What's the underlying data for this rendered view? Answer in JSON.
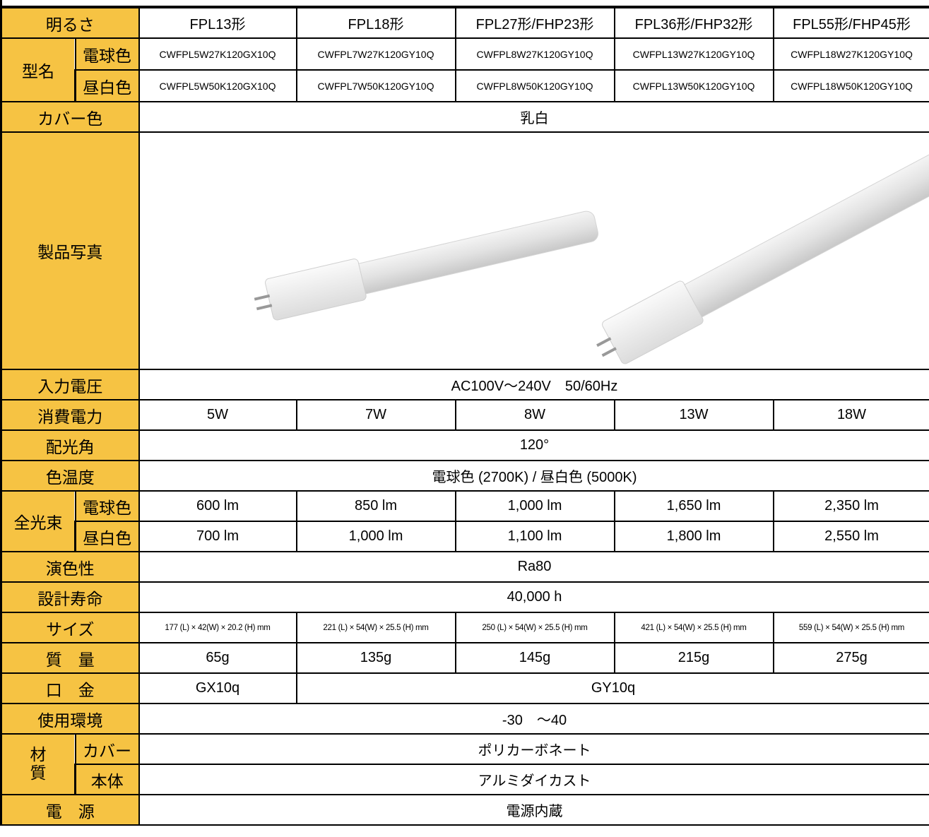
{
  "table": {
    "brightness": {
      "label": "明るさ",
      "values": [
        "FPL13形",
        "FPL18形",
        "FPL27形/FHP23形",
        "FPL36形/FHP32形",
        "FPL55形/FHP45形"
      ]
    },
    "model": {
      "label": "型名",
      "warm": {
        "label": "電球色",
        "values": [
          "CWFPL5W27K120GX10Q",
          "CWFPL7W27K120GY10Q",
          "CWFPL8W27K120GY10Q",
          "CWFPL13W27K120GY10Q",
          "CWFPL18W27K120GY10Q"
        ]
      },
      "neutral": {
        "label": "昼白色",
        "values": [
          "CWFPL5W50K120GX10Q",
          "CWFPL7W50K120GY10Q",
          "CWFPL8W50K120GY10Q",
          "CWFPL13W50K120GY10Q",
          "CWFPL18W50K120GY10Q"
        ]
      }
    },
    "cover_color": {
      "label": "カバー色",
      "value": "乳白"
    },
    "photo": {
      "label": "製品写真"
    },
    "input_voltage": {
      "label": "入力電圧",
      "value": "AC100V～240V　50/60Hz"
    },
    "power": {
      "label": "消費電力",
      "values": [
        "5W",
        "7W",
        "8W",
        "13W",
        "18W"
      ]
    },
    "beam_angle": {
      "label": "配光角",
      "value": "120°"
    },
    "color_temp": {
      "label": "色温度",
      "value": "電球色 (2700K) / 昼白色 (5000K)"
    },
    "luminous_flux": {
      "label": "全光束",
      "warm": {
        "label": "電球色",
        "values": [
          "600 lm",
          "850 lm",
          "1,000 lm",
          "1,650 lm",
          "2,350 lm"
        ]
      },
      "neutral": {
        "label": "昼白色",
        "values": [
          "700 lm",
          "1,000 lm",
          "1,100 lm",
          "1,800 lm",
          "2,550 lm"
        ]
      }
    },
    "cri": {
      "label": "演色性",
      "value": "Ra80"
    },
    "lifetime": {
      "label": "設計寿命",
      "value": "40,000 h"
    },
    "size": {
      "label": "サイズ",
      "values": [
        "177 (L) × 42(W) × 20.2 (H) mm",
        "221 (L) × 54(W) × 25.5 (H) mm",
        "250 (L) × 54(W) × 25.5 (H) mm",
        "421 (L) × 54(W) × 25.5 (H) mm",
        "559 (L) × 54(W) × 25.5 (H) mm"
      ]
    },
    "weight": {
      "label": "質　量",
      "values": [
        "65g",
        "135g",
        "145g",
        "215g",
        "275g"
      ]
    },
    "base": {
      "label": "口　金",
      "values": [
        "GX10q",
        "GY10q"
      ]
    },
    "environment": {
      "label": "使用環境",
      "value": "-30　～40"
    },
    "material": {
      "label": "材質",
      "cover": {
        "label": "カバー",
        "value": "ポリカーボネート"
      },
      "body": {
        "label": "本体",
        "value": "アルミダイカスト"
      }
    },
    "power_supply": {
      "label": "電　源",
      "value": "電源内蔵"
    }
  }
}
